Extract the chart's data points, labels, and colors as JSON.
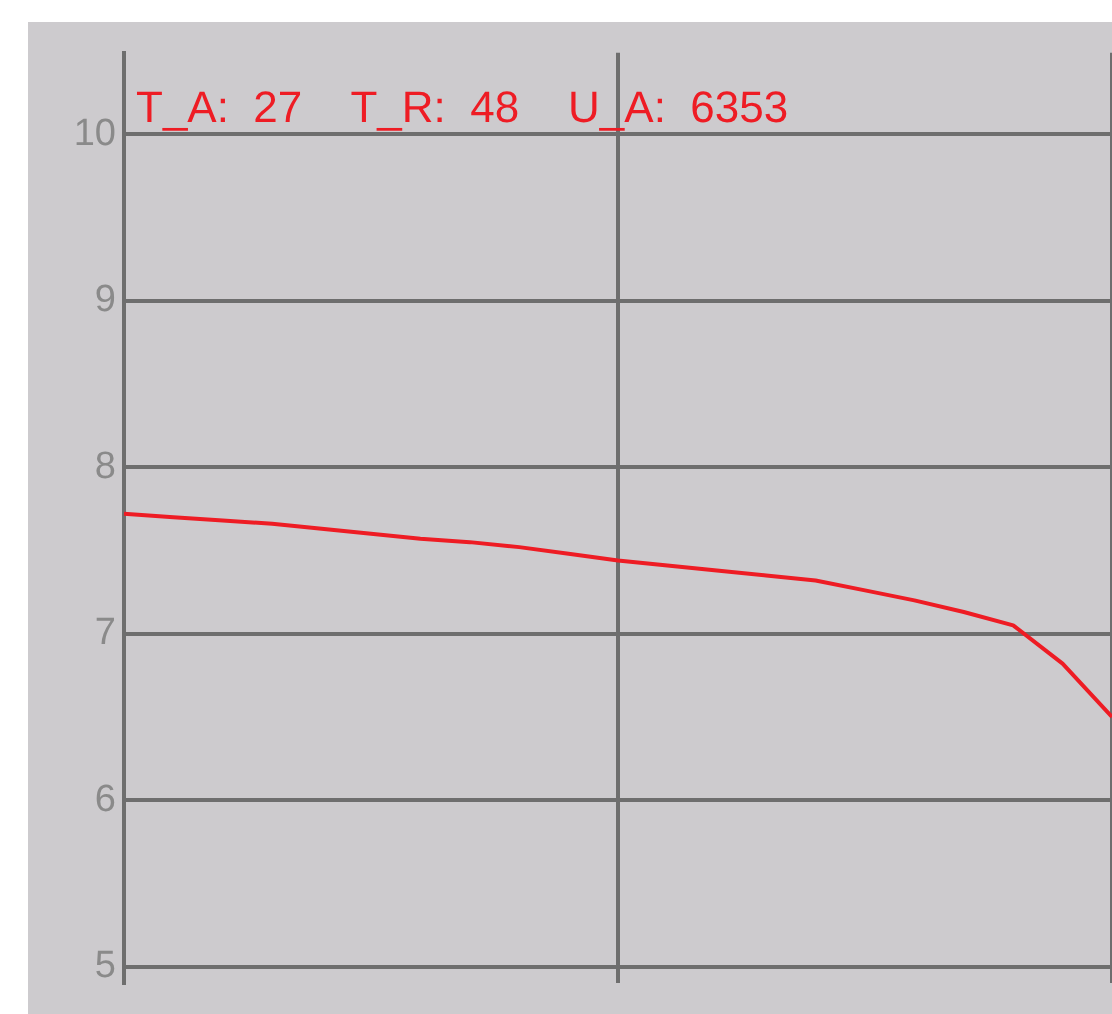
{
  "chart_data": {
    "type": "line",
    "title": "T_A:  27    T_R:  48    U_A:  6353",
    "categories": [
      null,
      null,
      null,
      null,
      null,
      null,
      null,
      null,
      null,
      null,
      null,
      null,
      null,
      null,
      null,
      null,
      null,
      null,
      null,
      null,
      null
    ],
    "series": [
      {
        "color": "#ee1c24",
        "values": [
          7.72,
          7.7,
          7.68,
          7.66,
          7.63,
          7.6,
          7.57,
          7.55,
          7.52,
          7.48,
          7.44,
          7.41,
          7.38,
          7.35,
          7.32,
          7.26,
          7.2,
          7.13,
          7.05,
          6.82,
          6.5
        ]
      }
    ],
    "ylim": [
      4.9,
      10.49
    ],
    "yticks": [
      5,
      6,
      7,
      8,
      9,
      10
    ],
    "grid": true,
    "legend": false,
    "marker": "none",
    "line_style": "solid",
    "tick_labels": "y"
  }
}
